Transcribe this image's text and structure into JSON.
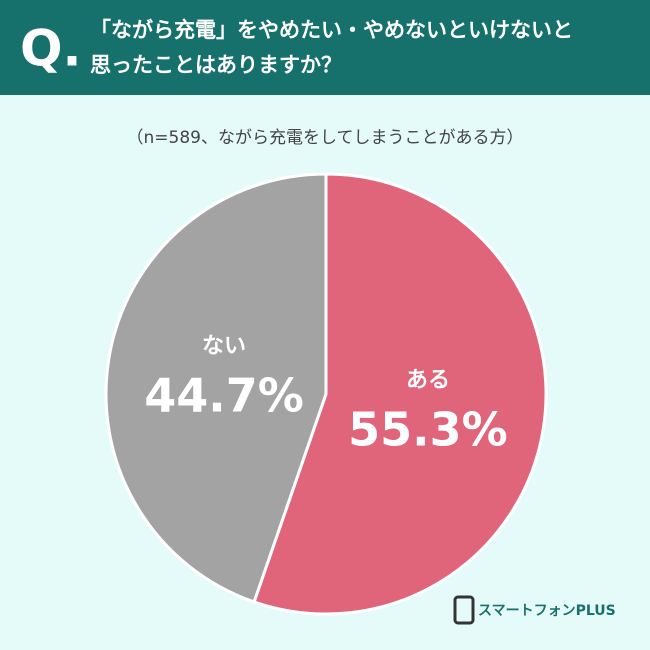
{
  "chart_data": {
    "type": "pie",
    "question_marker": "Q.",
    "title": [
      "「ながら充電」をやめたい・やめないといけないと",
      "思ったことはありますか？"
    ],
    "subtitle": "（n=589、ながら充電をしてしまうことがある方）",
    "categories": [
      "ある",
      "ない"
    ],
    "values": [
      55.3,
      44.7
    ],
    "value_labels": [
      "55.3%",
      "44.7%"
    ],
    "colors": [
      "#e0647a",
      "#a3a3a3"
    ],
    "logo": "スマートフォンPLUS"
  }
}
